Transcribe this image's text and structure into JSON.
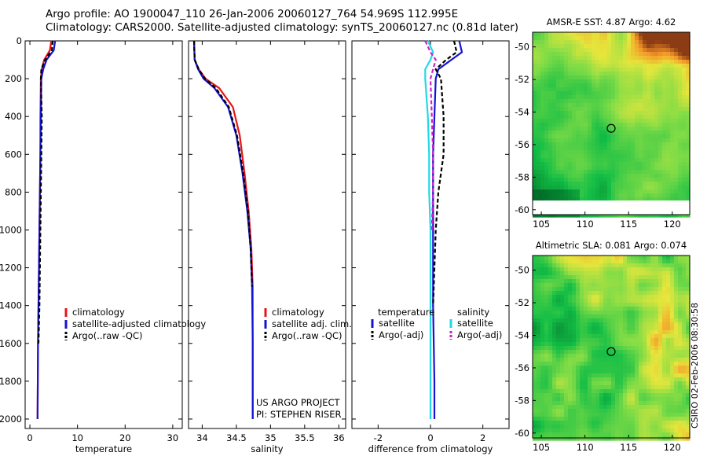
{
  "header": {
    "line1": "Argo profile: AO 1900047_110 26-Jan-2006 20060127_764 54.969S 112.995E",
    "line2": "Climatology: CARS2000. Satellite-adjusted climatology: synTS_20060127.nc (0.81d later)"
  },
  "stamp": "CSIRO 02-Feb-2006 08:30:58",
  "colors": {
    "climatology": "#e8141c",
    "satellite": "#1414d0",
    "argo": "#000000",
    "sat_salinity": "#22d8e8",
    "argo_adj_salinity": "#d020c8"
  },
  "chart_data": [
    {
      "type": "line",
      "id": "temperature",
      "xlabel": "temperature",
      "xlim": [
        -1,
        32
      ],
      "ylim": [
        0,
        2050
      ],
      "xticks": [
        0,
        10,
        20,
        30
      ],
      "yticks": [
        0,
        200,
        400,
        600,
        800,
        1000,
        1200,
        1400,
        1600,
        1800,
        2000
      ],
      "legend": [
        "climatology",
        "satellite-adjusted climatology",
        "Argo(..raw -QC)"
      ],
      "series": [
        {
          "name": "climatology",
          "color": "#e8141c",
          "dash": false,
          "x": [
            4.5,
            4.2,
            3.0,
            2.5,
            2.3,
            2.2,
            2.2,
            2.1,
            2.0,
            1.9,
            1.8,
            1.7,
            1.6
          ],
          "y": [
            0,
            50,
            100,
            150,
            200,
            400,
            600,
            800,
            1000,
            1200,
            1400,
            1600,
            2000
          ]
        },
        {
          "name": "satellite",
          "color": "#1414d0",
          "dash": false,
          "x": [
            5.3,
            5.0,
            3.5,
            2.8,
            2.4,
            2.3,
            2.2,
            2.1,
            2.0,
            1.9,
            1.8,
            1.7,
            1.6
          ],
          "y": [
            0,
            50,
            100,
            150,
            200,
            400,
            600,
            800,
            1000,
            1200,
            1400,
            1600,
            2000
          ]
        },
        {
          "name": "argo",
          "color": "#000000",
          "dash": true,
          "x": [
            4.8,
            4.6,
            3.2,
            2.4,
            2.3,
            2.5,
            2.4,
            2.3,
            2.2,
            2.1,
            2.0,
            1.8
          ],
          "y": [
            0,
            50,
            100,
            150,
            200,
            400,
            600,
            800,
            1000,
            1200,
            1400,
            1600
          ]
        }
      ]
    },
    {
      "type": "line",
      "id": "salinity",
      "xlabel": "salinity",
      "xlim": [
        33.8,
        36.1
      ],
      "ylim": [
        0,
        2050
      ],
      "xticks": [
        34,
        34.5,
        35,
        35.5,
        36
      ],
      "legend": [
        "climatology",
        "satellite adj. clim.",
        "Argo(..raw -QC)"
      ],
      "annotations": [
        "US ARGO PROJECT",
        "PI: STEPHEN RISER"
      ],
      "series": [
        {
          "name": "climatology",
          "color": "#e8141c",
          "dash": false,
          "x": [
            33.88,
            33.89,
            33.95,
            34.05,
            34.25,
            34.45,
            34.55,
            34.62,
            34.68,
            34.72,
            34.74,
            34.74,
            34.74
          ],
          "y": [
            0,
            100,
            150,
            200,
            250,
            350,
            500,
            700,
            900,
            1100,
            1300,
            1600,
            2000
          ]
        },
        {
          "name": "satellite",
          "color": "#1414d0",
          "dash": false,
          "x": [
            33.88,
            33.89,
            33.94,
            34.02,
            34.18,
            34.38,
            34.5,
            34.59,
            34.66,
            34.71,
            34.73,
            34.74,
            34.74
          ],
          "y": [
            0,
            100,
            150,
            200,
            250,
            350,
            500,
            700,
            900,
            1100,
            1300,
            1600,
            2000
          ]
        },
        {
          "name": "argo",
          "color": "#000000",
          "dash": true,
          "x": [
            33.88,
            33.89,
            33.95,
            34.04,
            34.2,
            34.39,
            34.51,
            34.6,
            34.67,
            34.71,
            34.73
          ],
          "y": [
            0,
            100,
            150,
            200,
            250,
            350,
            500,
            700,
            900,
            1100,
            1300
          ]
        }
      ]
    },
    {
      "type": "line",
      "id": "difference",
      "xlabel": "difference from climatology",
      "xlim": [
        -3,
        3
      ],
      "ylim": [
        0,
        2050
      ],
      "xticks": [
        -2,
        0,
        2
      ],
      "legend_groups": [
        {
          "title": "temperature",
          "items": [
            "satellite",
            "Argo(-adj)"
          ]
        },
        {
          "title": "salinity",
          "items": [
            "satellite",
            "Argo(-adj)"
          ]
        }
      ],
      "series": [
        {
          "name": "temperature satellite",
          "color": "#1414d0",
          "dash": false,
          "x": [
            1.1,
            1.2,
            0.8,
            0.3,
            0.2,
            0.15,
            0.1,
            0.1,
            0.1,
            0.1,
            0.15,
            0.15
          ],
          "y": [
            0,
            60,
            100,
            150,
            200,
            400,
            600,
            800,
            1000,
            1400,
            1800,
            2000
          ]
        },
        {
          "name": "temperature Argo",
          "color": "#000000",
          "dash": true,
          "x": [
            0.9,
            1.0,
            0.6,
            0.2,
            0.4,
            0.5,
            0.5,
            0.3,
            0.2,
            0.15,
            0.1
          ],
          "y": [
            0,
            60,
            100,
            150,
            200,
            400,
            600,
            800,
            1000,
            1200,
            1400
          ]
        },
        {
          "name": "salinity satellite",
          "color": "#22d8e8",
          "dash": false,
          "x": [
            -0.1,
            0.1,
            0.0,
            -0.2,
            -0.2,
            -0.1,
            -0.05,
            -0.05,
            0.0,
            0.0,
            0.0
          ],
          "y": [
            0,
            60,
            100,
            150,
            200,
            400,
            600,
            800,
            1000,
            1400,
            2000
          ]
        },
        {
          "name": "salinity Argo",
          "color": "#d020c8",
          "dash": true,
          "x": [
            -0.2,
            0.0,
            0.2,
            0.1,
            0.0,
            0.05,
            0.1,
            0.1,
            0.05
          ],
          "y": [
            0,
            60,
            100,
            150,
            200,
            400,
            600,
            800,
            1000
          ]
        }
      ]
    },
    {
      "type": "heatmap",
      "id": "sst",
      "title": "AMSR-E SST: 4.87 Argo: 4.62",
      "xlim": [
        104,
        122
      ],
      "ylim": [
        -60.3,
        -49.1
      ],
      "xticks": [
        105,
        110,
        115,
        120
      ],
      "yticks": [
        -50,
        -52,
        -54,
        -56,
        -58,
        -60
      ],
      "marker": [
        113,
        -55
      ]
    },
    {
      "type": "heatmap",
      "id": "sla",
      "title": "Altimetric SLA: 0.081 Argo: 0.074",
      "xlim": [
        104,
        122
      ],
      "ylim": [
        -60.3,
        -49.1
      ],
      "xticks": [
        105,
        110,
        115,
        120
      ],
      "yticks": [
        -50,
        -52,
        -54,
        -56,
        -58,
        -60
      ],
      "marker": [
        113,
        -55
      ]
    }
  ]
}
